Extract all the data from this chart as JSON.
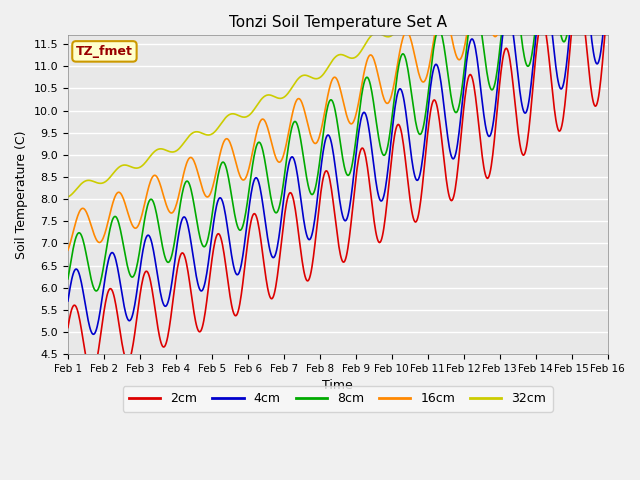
{
  "title": "Tonzi Soil Temperature Set A",
  "xlabel": "Time",
  "ylabel": "Soil Temperature (C)",
  "ylim": [
    4.5,
    11.7
  ],
  "xlim": [
    0,
    15
  ],
  "xtick_labels": [
    "Feb 1",
    "Feb 2",
    "Feb 3",
    "Feb 4",
    "Feb 5",
    "Feb 6",
    "Feb 7",
    "Feb 8",
    "Feb 9",
    "Feb 10",
    "Feb 11",
    "Feb 12",
    "Feb 13",
    "Feb 14",
    "Feb 15",
    "Feb 16"
  ],
  "annotation_text": "TZ_fmet",
  "annotation_bg": "#ffffcc",
  "annotation_border": "#cc9900",
  "annotation_color": "#990000",
  "colors": {
    "2cm": "#dd0000",
    "4cm": "#0000cc",
    "8cm": "#00aa00",
    "16cm": "#ff8800",
    "32cm": "#cccc00"
  },
  "bg_color": "#e8e8e8",
  "grid_color": "#ffffff"
}
